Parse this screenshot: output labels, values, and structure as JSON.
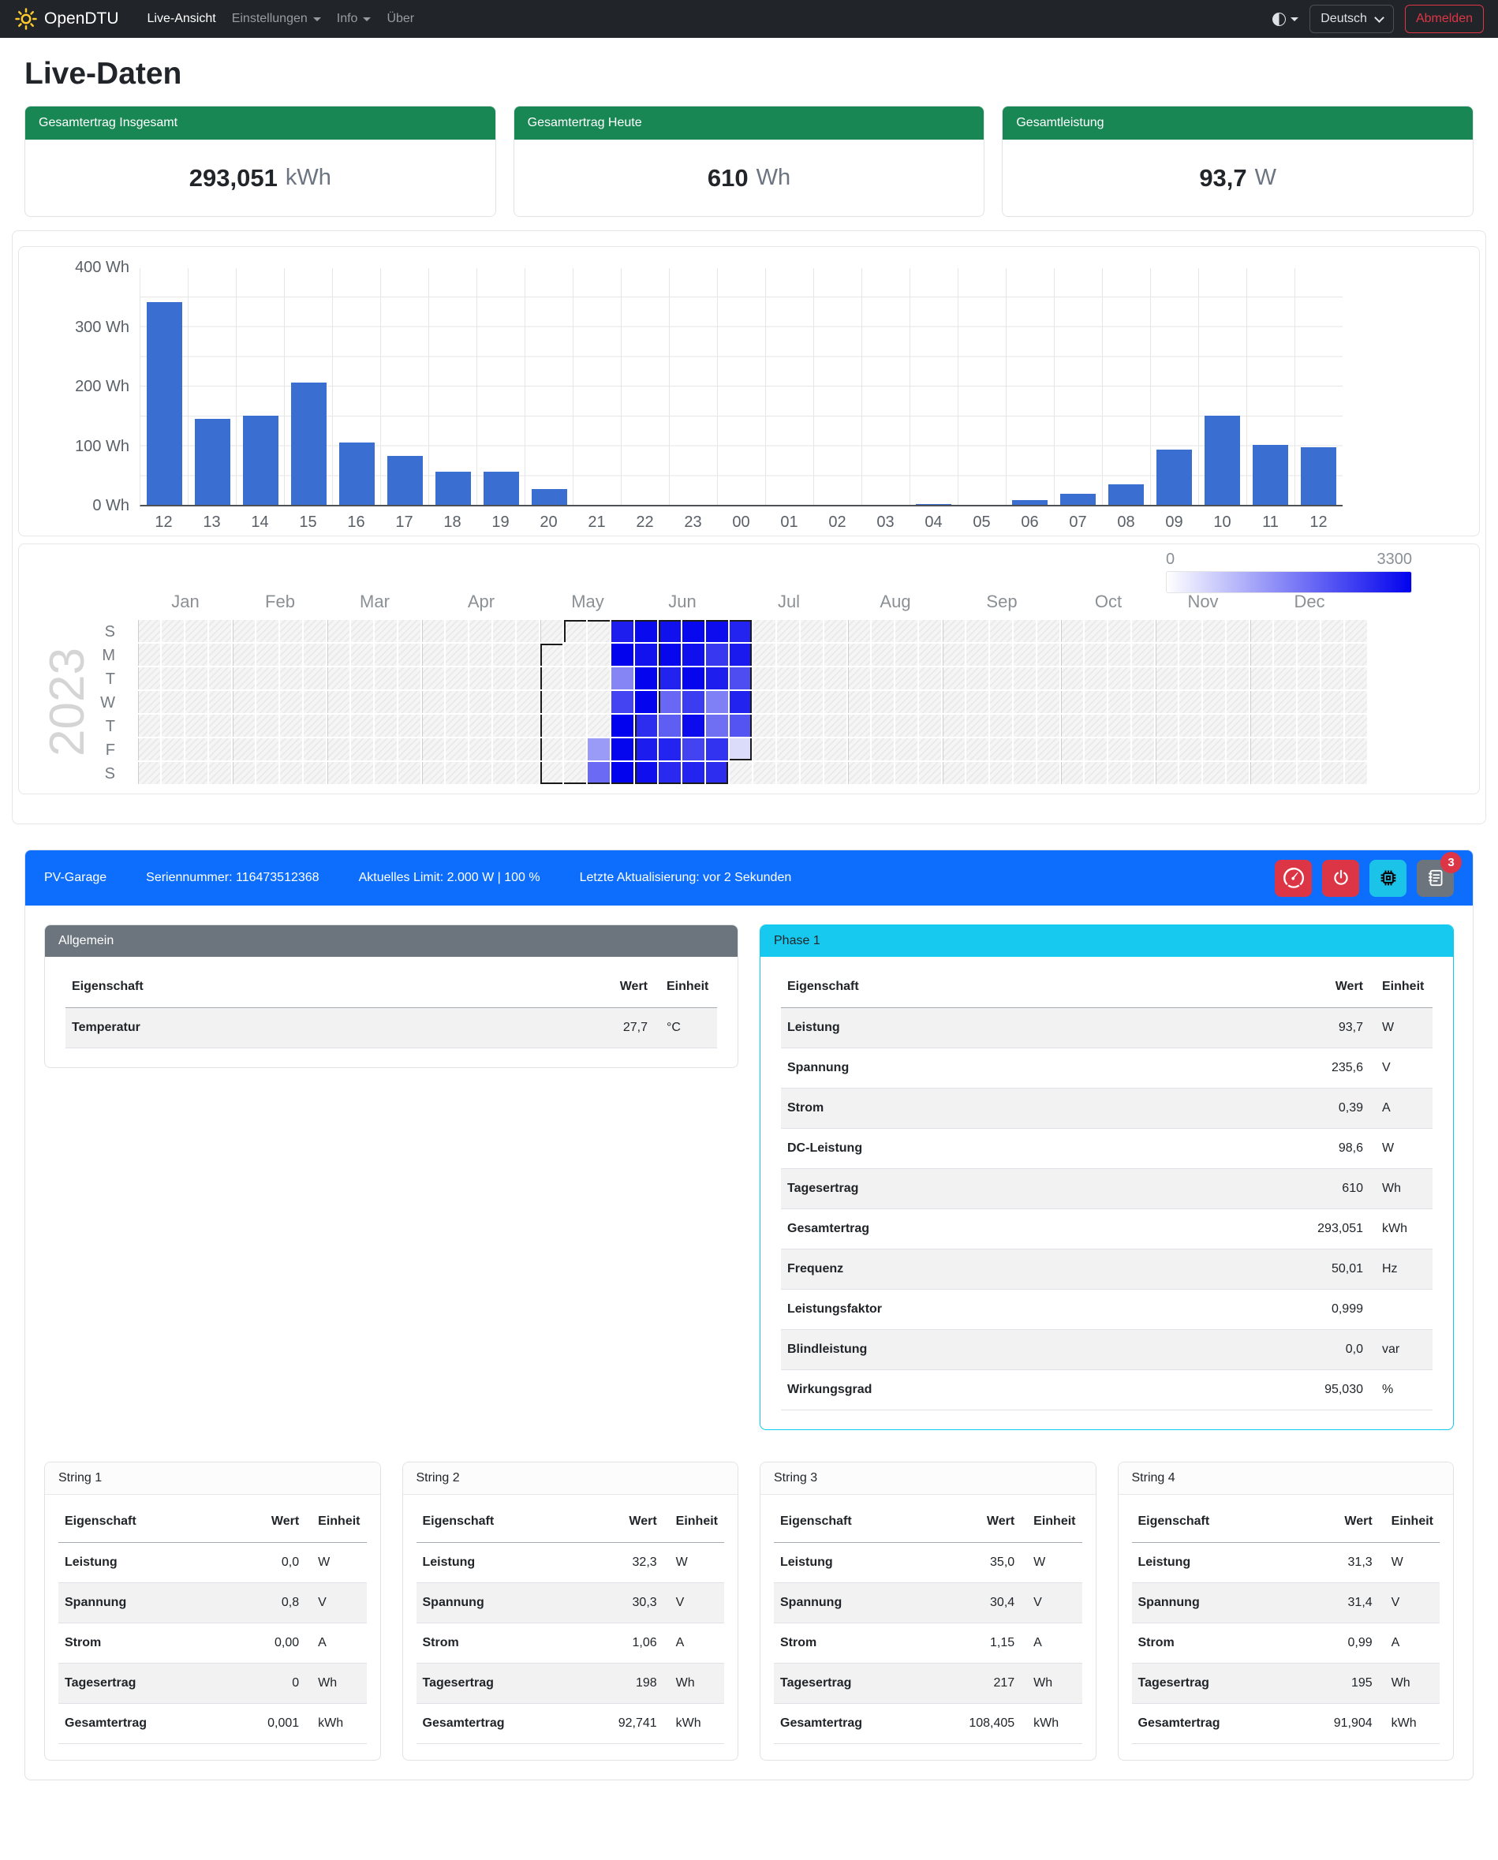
{
  "navbar": {
    "brand": "OpenDTU",
    "items": [
      {
        "label": "Live-Ansicht",
        "active": true,
        "caret": false
      },
      {
        "label": "Einstellungen",
        "active": false,
        "caret": true
      },
      {
        "label": "Info",
        "active": false,
        "caret": true
      },
      {
        "label": "Über",
        "active": false,
        "caret": false
      }
    ],
    "language": "Deutsch",
    "logout_label": "Abmelden"
  },
  "page_title": "Live-Daten",
  "summary_cards": [
    {
      "title": "Gesamtertrag Insgesamt",
      "value": "293,051",
      "unit": "kWh"
    },
    {
      "title": "Gesamtertrag Heute",
      "value": "610",
      "unit": "Wh"
    },
    {
      "title": "Gesamtleistung",
      "value": "93,7",
      "unit": "W"
    }
  ],
  "chart_data": [
    {
      "type": "bar",
      "title": "Hourly yield last 24 h",
      "x": [
        "12",
        "13",
        "14",
        "15",
        "16",
        "17",
        "18",
        "19",
        "20",
        "21",
        "22",
        "23",
        "00",
        "01",
        "02",
        "03",
        "04",
        "05",
        "06",
        "07",
        "08",
        "09",
        "10",
        "11",
        "12"
      ],
      "values": [
        340,
        145,
        150,
        205,
        105,
        82,
        55,
        55,
        27,
        0,
        0,
        0,
        0,
        0,
        0,
        0,
        1,
        0,
        8,
        18,
        35,
        93,
        150,
        100,
        97
      ],
      "ylabel": "Wh",
      "ylim": [
        0,
        400
      ],
      "yticks": [
        "400 Wh",
        "300 Wh",
        "200 Wh",
        "100 Wh",
        "0 Wh"
      ],
      "grid": true,
      "bar_color": "#3a6ed0"
    },
    {
      "type": "heatmap",
      "title": "Daily yield calendar 2023",
      "year": "2023",
      "day_labels": [
        "S",
        "M",
        "T",
        "W",
        "T",
        "F",
        "S"
      ],
      "month_labels": [
        "Jan",
        "Feb",
        "Mar",
        "Apr",
        "May",
        "Jun",
        "Jul",
        "Aug",
        "Sep",
        "Oct",
        "Nov",
        "Dec"
      ],
      "weeks": 52,
      "legend": {
        "min_label": "0",
        "max_label": "3300",
        "color_min": "#ffffff",
        "color_max": "#0202ee"
      },
      "month_start_cols": [
        0,
        4,
        8,
        12,
        17,
        21,
        25,
        30,
        34,
        39,
        43,
        47
      ],
      "outline_region_rows": [
        [
          18,
          25
        ],
        [
          17,
          25
        ],
        [
          17,
          25
        ],
        [
          17,
          25
        ],
        [
          17,
          25
        ],
        [
          17,
          25
        ],
        [
          17,
          24
        ]
      ],
      "june_boundary_cells": [
        {
          "c": 22,
          "r": 0
        },
        {
          "c": 22,
          "r": 1
        },
        {
          "c": 22,
          "r": 2
        },
        {
          "c": 22,
          "r": 3
        },
        {
          "c": 21,
          "r": 4
        },
        {
          "c": 21,
          "r": 5
        },
        {
          "c": 21,
          "r": 6
        }
      ],
      "cells": [
        {
          "c": 20,
          "r": 0,
          "v": 2880,
          "color": "#1e1eef"
        },
        {
          "c": 21,
          "r": 0,
          "v": 3160,
          "color": "#0a0aee"
        },
        {
          "c": 22,
          "r": 0,
          "v": 3060,
          "color": "#1111ee"
        },
        {
          "c": 23,
          "r": 0,
          "v": 3190,
          "color": "#0808ee"
        },
        {
          "c": 24,
          "r": 0,
          "v": 3130,
          "color": "#0c0cee"
        },
        {
          "c": 25,
          "r": 0,
          "v": 2800,
          "color": "#2424f0"
        },
        {
          "c": 20,
          "r": 1,
          "v": 3260,
          "color": "#0303ee"
        },
        {
          "c": 21,
          "r": 1,
          "v": 3050,
          "color": "#1212ee"
        },
        {
          "c": 22,
          "r": 1,
          "v": 3200,
          "color": "#0707ee"
        },
        {
          "c": 23,
          "r": 1,
          "v": 3080,
          "color": "#1010ee"
        },
        {
          "c": 24,
          "r": 1,
          "v": 2520,
          "color": "#3838f1"
        },
        {
          "c": 25,
          "r": 1,
          "v": 2940,
          "color": "#1a1aef"
        },
        {
          "c": 20,
          "r": 2,
          "v": 1460,
          "color": "#8585f6"
        },
        {
          "c": 21,
          "r": 2,
          "v": 3240,
          "color": "#0404ee"
        },
        {
          "c": 22,
          "r": 2,
          "v": 2810,
          "color": "#2323f0"
        },
        {
          "c": 23,
          "r": 2,
          "v": 3220,
          "color": "#0606ee"
        },
        {
          "c": 24,
          "r": 2,
          "v": 2880,
          "color": "#1e1eef"
        },
        {
          "c": 25,
          "r": 2,
          "v": 2230,
          "color": "#4d4df2"
        },
        {
          "c": 20,
          "r": 3,
          "v": 2360,
          "color": "#4444f2"
        },
        {
          "c": 21,
          "r": 3,
          "v": 3240,
          "color": "#0404ee"
        },
        {
          "c": 22,
          "r": 3,
          "v": 1860,
          "color": "#6868f4"
        },
        {
          "c": 23,
          "r": 3,
          "v": 2470,
          "color": "#3c3cf1"
        },
        {
          "c": 24,
          "r": 3,
          "v": 1530,
          "color": "#8080f6"
        },
        {
          "c": 25,
          "r": 3,
          "v": 2810,
          "color": "#2323f0"
        },
        {
          "c": 20,
          "r": 4,
          "v": 3270,
          "color": "#0202ee"
        },
        {
          "c": 21,
          "r": 4,
          "v": 2680,
          "color": "#2d2df0"
        },
        {
          "c": 22,
          "r": 4,
          "v": 2000,
          "color": "#5e5ef3"
        },
        {
          "c": 23,
          "r": 4,
          "v": 3150,
          "color": "#0b0bee"
        },
        {
          "c": 24,
          "r": 4,
          "v": 1760,
          "color": "#6f6ff4"
        },
        {
          "c": 25,
          "r": 4,
          "v": 2140,
          "color": "#5454f3"
        },
        {
          "c": 19,
          "r": 5,
          "v": 1170,
          "color": "#9a9af7"
        },
        {
          "c": 20,
          "r": 5,
          "v": 3230,
          "color": "#0505ee"
        },
        {
          "c": 21,
          "r": 5,
          "v": 2910,
          "color": "#1c1cef"
        },
        {
          "c": 22,
          "r": 5,
          "v": 2800,
          "color": "#2424f0"
        },
        {
          "c": 23,
          "r": 5,
          "v": 2370,
          "color": "#4343f2"
        },
        {
          "c": 24,
          "r": 5,
          "v": 2610,
          "color": "#3232f1"
        },
        {
          "c": 25,
          "r": 5,
          "v": 260,
          "color": "#dbdbfa"
        },
        {
          "c": 19,
          "r": 6,
          "v": 1830,
          "color": "#6a6af4"
        },
        {
          "c": 20,
          "r": 6,
          "v": 3260,
          "color": "#0303ee"
        },
        {
          "c": 21,
          "r": 6,
          "v": 3110,
          "color": "#0e0eee"
        },
        {
          "c": 22,
          "r": 6,
          "v": 2730,
          "color": "#2929f0"
        },
        {
          "c": 23,
          "r": 6,
          "v": 2800,
          "color": "#2424f0"
        },
        {
          "c": 24,
          "r": 6,
          "v": 2680,
          "color": "#2d2df0"
        }
      ]
    }
  ],
  "inverter": {
    "name": "PV-Garage",
    "serial_label": "Seriennummer: 116473512368",
    "limit_label": "Aktuelles Limit: 2.000 W | 100 %",
    "update_label": "Letzte Aktualisierung: vor 2 Sekunden",
    "event_badge": "3",
    "header_color": "#0d6efd"
  },
  "table_columns": [
    "Eigenschaft",
    "Wert",
    "Einheit"
  ],
  "info_cards": [
    {
      "title": "Allgemein",
      "header_bg": "#6c757d",
      "header_color": "#ffffff",
      "border": "#e0e3e6",
      "stripe": "even",
      "rows": [
        [
          "Temperatur",
          "27,7",
          "°C"
        ]
      ]
    },
    {
      "title": "Phase 1",
      "header_bg": "#17c9ef",
      "header_color": "#212529",
      "border": "#0dcaf0",
      "stripe": "even",
      "rows": [
        [
          "Leistung",
          "93,7",
          "W"
        ],
        [
          "Spannung",
          "235,6",
          "V"
        ],
        [
          "Strom",
          "0,39",
          "A"
        ],
        [
          "DC-Leistung",
          "98,6",
          "W"
        ],
        [
          "Tagesertrag",
          "610",
          "Wh"
        ],
        [
          "Gesamtertrag",
          "293,051",
          "kWh"
        ],
        [
          "Frequenz",
          "50,01",
          "Hz"
        ],
        [
          "Leistungsfaktor",
          "0,999",
          ""
        ],
        [
          "Blindleistung",
          "0,0",
          "var"
        ],
        [
          "Wirkungsgrad",
          "95,030",
          "%"
        ]
      ]
    }
  ],
  "string_cards": [
    {
      "title": "String 1",
      "stripe": "odd",
      "rows": [
        [
          "Leistung",
          "0,0",
          "W"
        ],
        [
          "Spannung",
          "0,8",
          "V"
        ],
        [
          "Strom",
          "0,00",
          "A"
        ],
        [
          "Tagesertrag",
          "0",
          "Wh"
        ],
        [
          "Gesamtertrag",
          "0,001",
          "kWh"
        ]
      ]
    },
    {
      "title": "String 2",
      "stripe": "odd",
      "rows": [
        [
          "Leistung",
          "32,3",
          "W"
        ],
        [
          "Spannung",
          "30,3",
          "V"
        ],
        [
          "Strom",
          "1,06",
          "A"
        ],
        [
          "Tagesertrag",
          "198",
          "Wh"
        ],
        [
          "Gesamtertrag",
          "92,741",
          "kWh"
        ]
      ]
    },
    {
      "title": "String 3",
      "stripe": "odd",
      "rows": [
        [
          "Leistung",
          "35,0",
          "W"
        ],
        [
          "Spannung",
          "30,4",
          "V"
        ],
        [
          "Strom",
          "1,15",
          "A"
        ],
        [
          "Tagesertrag",
          "217",
          "Wh"
        ],
        [
          "Gesamtertrag",
          "108,405",
          "kWh"
        ]
      ]
    },
    {
      "title": "String 4",
      "stripe": "odd",
      "rows": [
        [
          "Leistung",
          "31,3",
          "W"
        ],
        [
          "Spannung",
          "31,4",
          "V"
        ],
        [
          "Strom",
          "0,99",
          "A"
        ],
        [
          "Tagesertrag",
          "195",
          "Wh"
        ],
        [
          "Gesamtertrag",
          "91,904",
          "kWh"
        ]
      ]
    }
  ]
}
